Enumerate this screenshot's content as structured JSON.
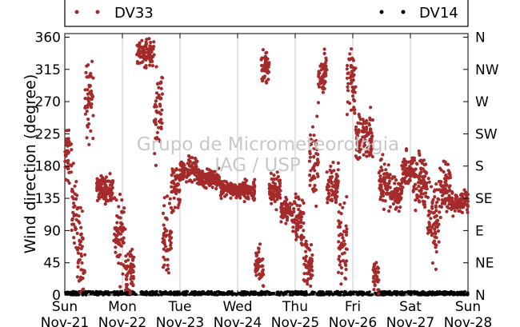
{
  "chart_data": {
    "type": "scatter",
    "ylabel": "Wind direction (degree)",
    "ylim": [
      0,
      365
    ],
    "grid": "vertical",
    "legend_position": "top",
    "watermark": [
      "Grupo de Micrometeorologia",
      "IAG / USP"
    ],
    "x_ticks": [
      {
        "day": "Sun",
        "date": "Nov-21",
        "t": 0
      },
      {
        "day": "Mon",
        "date": "Nov-22",
        "t": 1
      },
      {
        "day": "Tue",
        "date": "Nov-23",
        "t": 2
      },
      {
        "day": "Wed",
        "date": "Nov-24",
        "t": 3
      },
      {
        "day": "Thu",
        "date": "Nov-25",
        "t": 4
      },
      {
        "day": "Fri",
        "date": "Nov-26",
        "t": 5
      },
      {
        "day": "Sat",
        "date": "Nov-27",
        "t": 6
      },
      {
        "day": "Sun",
        "date": "Nov-28",
        "t": 7
      }
    ],
    "y_ticks_left": [
      "0",
      "45",
      "90",
      "135",
      "180",
      "225",
      "270",
      "315",
      "360"
    ],
    "y_ticks_right": [
      "N",
      "NE",
      "E",
      "SE",
      "S",
      "SW",
      "W",
      "NW",
      "N"
    ],
    "series": [
      {
        "name": "DV33",
        "color": "#a52a2a",
        "segments": [
          [
            0.0,
            0.12,
            195,
            30
          ],
          [
            0.12,
            0.22,
            120,
            55
          ],
          [
            0.22,
            0.35,
            60,
            50
          ],
          [
            0.35,
            0.5,
            270,
            50
          ],
          [
            0.55,
            0.85,
            150,
            18
          ],
          [
            0.85,
            1.05,
            80,
            60
          ],
          [
            1.05,
            1.2,
            30,
            40
          ],
          [
            1.25,
            1.55,
            340,
            18
          ],
          [
            1.55,
            1.7,
            250,
            60
          ],
          [
            1.7,
            1.85,
            80,
            50
          ],
          [
            1.85,
            2.0,
            150,
            40
          ],
          [
            2.0,
            2.3,
            175,
            15
          ],
          [
            2.3,
            2.7,
            162,
            12
          ],
          [
            2.7,
            3.1,
            148,
            10
          ],
          [
            3.1,
            3.3,
            145,
            12
          ],
          [
            3.3,
            3.45,
            40,
            30
          ],
          [
            3.4,
            3.55,
            320,
            20
          ],
          [
            3.55,
            3.75,
            150,
            20
          ],
          [
            3.75,
            3.95,
            118,
            15
          ],
          [
            3.95,
            4.15,
            100,
            40
          ],
          [
            4.15,
            4.3,
            40,
            30
          ],
          [
            4.25,
            4.4,
            185,
            50
          ],
          [
            4.4,
            4.55,
            310,
            30
          ],
          [
            4.55,
            4.75,
            155,
            25
          ],
          [
            4.75,
            4.9,
            70,
            60
          ],
          [
            4.9,
            5.05,
            300,
            50
          ],
          [
            5.05,
            5.35,
            220,
            30
          ],
          [
            5.35,
            5.45,
            25,
            25
          ],
          [
            5.45,
            5.65,
            160,
            35
          ],
          [
            5.65,
            5.85,
            140,
            20
          ],
          [
            5.85,
            6.05,
            175,
            20
          ],
          [
            6.05,
            6.3,
            160,
            40
          ],
          [
            6.3,
            6.5,
            110,
            60
          ],
          [
            6.5,
            6.7,
            150,
            35
          ],
          [
            6.7,
            7.0,
            130,
            15
          ]
        ]
      },
      {
        "name": "DV14",
        "color": "#000000",
        "baseline": [
          0,
          5
        ]
      }
    ]
  }
}
